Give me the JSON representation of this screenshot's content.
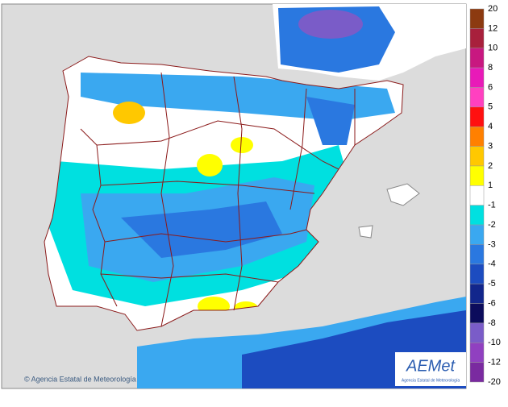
{
  "legend": {
    "labels": [
      "20",
      "12",
      "10",
      "8",
      "6",
      "5",
      "4",
      "3",
      "2",
      "1",
      "-1",
      "-2",
      "-3",
      "-4",
      "-5",
      "-6",
      "-8",
      "-10",
      "-12",
      "-20"
    ],
    "colors": [
      "#8c3a10",
      "#a8203c",
      "#c81880",
      "#e81ab8",
      "#ff40c0",
      "#ff1010",
      "#ff8000",
      "#ffc800",
      "#ffff00",
      "#ffffff",
      "#00e0e0",
      "#3aa8f0",
      "#2a78e0",
      "#1c4cc0",
      "#12268c",
      "#0c0c5c",
      "#7a5cc8",
      "#9040c0",
      "#7a2aa0"
    ]
  },
  "credit": "© Agencia Estatal de Meteorología",
  "logo": {
    "name": "AEMet",
    "subtitle": "Agencia Estatal de Meteorología"
  }
}
